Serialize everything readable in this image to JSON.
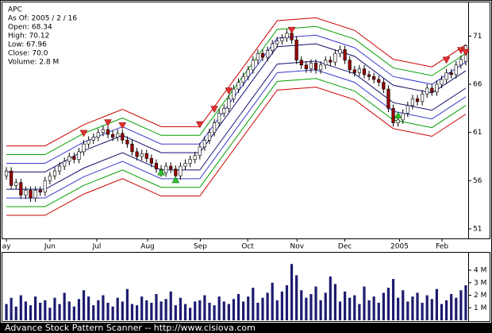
{
  "info_lines": [
    "APC",
    "As Of: 2005 / 2 / 16",
    "Open: 68.34",
    "High: 70.12",
    "Low: 67.96",
    "Close: 70.0",
    "Volume: 2.8 M"
  ],
  "footer": "Advance Stock Pattern Scanner -- http://www.cisiova.com",
  "chart_data": {
    "type": "candlestick",
    "xlim": [
      -0.5,
      95.5
    ],
    "xticks": [
      {
        "value": 0,
        "label": "ay"
      },
      {
        "value": 9,
        "label": "Jun"
      },
      {
        "value": 18.7,
        "label": "Jul"
      },
      {
        "value": 29.2,
        "label": "Aug"
      },
      {
        "value": 40.1,
        "label": "Sep"
      },
      {
        "value": 49.9,
        "label": "Oct"
      },
      {
        "value": 60.1,
        "label": "Nov"
      },
      {
        "value": 70,
        "label": "Dec"
      },
      {
        "value": 81.3,
        "label": "2005"
      },
      {
        "value": 90.1,
        "label": "Feb"
      }
    ],
    "ylim": [
      50.0,
      74.5
    ],
    "yticks": [
      51,
      56,
      61,
      66,
      71
    ],
    "volume_ylim": [
      0,
      5.4
    ],
    "volume_yticks": [
      {
        "value": 1,
        "label": "1 M"
      },
      {
        "value": 2,
        "label": "2 M"
      },
      {
        "value": 3,
        "label": "3 M"
      },
      {
        "value": 4,
        "label": "4 M"
      }
    ],
    "up_color": "#ffffff",
    "down_color": "#990000",
    "wick_color": "#000000",
    "volume_color": "#1c1c70",
    "open": [
      56.5,
      57.0,
      55.5,
      55.8,
      54.5,
      55.0,
      54.2,
      55.0,
      54.8,
      56.0,
      56.5,
      57.0,
      57.5,
      58.0,
      58.5,
      58.2,
      59.0,
      59.8,
      60.2,
      60.5,
      61.0,
      61.3,
      60.8,
      60.5,
      60.9,
      60.2,
      59.8,
      59.0,
      58.5,
      58.8,
      58.3,
      57.8,
      57.2,
      56.8,
      57.5,
      57.2,
      56.5,
      57.5,
      57.8,
      58.2,
      58.6,
      59.5,
      60.2,
      61.0,
      62.0,
      63.0,
      63.5,
      64.5,
      65.5,
      66.2,
      66.8,
      67.5,
      68.5,
      69.2,
      68.8,
      69.5,
      70.2,
      70.5,
      70.8,
      71.3,
      70.6,
      68.5,
      68.0,
      67.6,
      68.2,
      67.5,
      68.0,
      68.5,
      68.3,
      69.2,
      69.6,
      68.5,
      67.5,
      67.2,
      67.6,
      67.0,
      66.8,
      66.5,
      66.2,
      65.5,
      63.5,
      62.0,
      62.3,
      63.0,
      63.8,
      64.5,
      64.2,
      65.0,
      65.6,
      65.2,
      66.0,
      66.5,
      67.2,
      67.0,
      68.0,
      68.34
    ],
    "high": [
      57.4,
      57.4,
      56.2,
      56.2,
      55.4,
      55.4,
      55.4,
      55.4,
      56.4,
      56.9,
      57.4,
      57.9,
      58.4,
      58.9,
      58.9,
      59.4,
      60.2,
      60.6,
      60.9,
      61.4,
      61.7,
      61.7,
      61.2,
      61.3,
      61.3,
      60.6,
      60.2,
      59.4,
      59.2,
      59.2,
      58.7,
      58.2,
      57.6,
      57.9,
      57.9,
      57.6,
      57.9,
      58.2,
      58.6,
      59.0,
      59.9,
      60.6,
      61.4,
      62.4,
      63.4,
      63.9,
      64.9,
      65.9,
      66.6,
      67.2,
      67.9,
      68.9,
      69.6,
      69.6,
      69.9,
      70.6,
      70.9,
      71.2,
      71.7,
      71.7,
      71.0,
      68.9,
      68.4,
      68.6,
      68.6,
      68.4,
      68.9,
      68.9,
      69.6,
      70.0,
      70.0,
      68.9,
      67.9,
      68.0,
      68.0,
      67.4,
      67.2,
      66.9,
      66.6,
      65.9,
      63.9,
      62.7,
      63.4,
      64.2,
      64.9,
      64.9,
      65.4,
      66.0,
      66.0,
      66.4,
      66.9,
      67.6,
      67.6,
      68.4,
      69.0,
      70.12
    ],
    "low": [
      56.1,
      55.1,
      55.1,
      54.1,
      54.1,
      53.8,
      53.8,
      54.4,
      54.4,
      55.6,
      56.1,
      56.6,
      57.1,
      57.6,
      57.8,
      57.8,
      58.6,
      59.4,
      59.8,
      60.1,
      60.6,
      60.4,
      60.1,
      60.1,
      59.8,
      59.4,
      58.6,
      58.1,
      58.1,
      57.9,
      57.4,
      56.8,
      56.4,
      56.4,
      56.8,
      56.1,
      56.1,
      57.1,
      57.4,
      57.8,
      58.2,
      59.1,
      59.8,
      60.6,
      61.6,
      62.6,
      63.1,
      64.1,
      65.1,
      65.8,
      66.4,
      67.1,
      68.1,
      68.4,
      68.4,
      69.1,
      69.8,
      70.1,
      70.4,
      70.2,
      68.1,
      67.6,
      67.2,
      67.2,
      67.1,
      67.1,
      67.6,
      67.9,
      67.9,
      68.8,
      68.1,
      67.1,
      66.8,
      66.8,
      66.6,
      66.4,
      66.1,
      65.8,
      65.1,
      63.1,
      61.6,
      61.6,
      61.9,
      62.6,
      63.4,
      63.8,
      63.8,
      64.6,
      64.8,
      64.8,
      65.6,
      66.1,
      66.6,
      66.6,
      67.6,
      67.96
    ],
    "close": [
      57.0,
      55.5,
      55.8,
      54.5,
      55.0,
      54.2,
      55.0,
      54.8,
      56.0,
      56.5,
      57.0,
      57.5,
      58.0,
      58.5,
      58.2,
      59.0,
      59.8,
      60.2,
      60.5,
      61.0,
      61.3,
      60.8,
      60.5,
      60.9,
      60.2,
      59.8,
      59.0,
      58.5,
      58.8,
      58.3,
      57.8,
      57.2,
      56.8,
      57.5,
      57.2,
      56.5,
      57.5,
      57.8,
      58.2,
      58.6,
      59.5,
      60.2,
      61.0,
      62.0,
      63.0,
      63.5,
      64.5,
      65.5,
      66.2,
      66.8,
      67.5,
      68.5,
      69.2,
      68.8,
      69.5,
      70.2,
      70.5,
      70.8,
      71.3,
      70.6,
      68.5,
      68.0,
      67.6,
      68.2,
      67.5,
      68.0,
      68.5,
      68.3,
      69.2,
      69.6,
      68.5,
      67.5,
      67.2,
      67.6,
      67.0,
      66.8,
      66.5,
      66.2,
      65.5,
      63.5,
      62.0,
      62.3,
      63.0,
      63.8,
      64.5,
      64.2,
      65.0,
      65.6,
      65.2,
      66.0,
      66.5,
      67.2,
      67.0,
      68.0,
      68.6,
      70.0
    ],
    "volume": [
      1.3,
      1.8,
      1.1,
      2.0,
      1.5,
      1.2,
      1.9,
      1.4,
      1.6,
      1.0,
      1.8,
      1.3,
      2.2,
      1.5,
      1.1,
      1.7,
      2.4,
      1.9,
      1.2,
      1.6,
      2.0,
      1.4,
      1.1,
      1.8,
      1.5,
      2.5,
      1.3,
      1.2,
      1.9,
      1.6,
      1.4,
      2.1,
      1.5,
      1.7,
      2.3,
      1.2,
      1.8,
      1.3,
      1.0,
      1.5,
      1.6,
      2.0,
      1.4,
      1.2,
      1.9,
      1.5,
      1.3,
      1.7,
      2.1,
      1.5,
      1.9,
      2.6,
      1.4,
      1.8,
      2.2,
      3.0,
      1.6,
      2.3,
      2.8,
      4.5,
      3.6,
      2.4,
      1.8,
      2.1,
      2.7,
      1.6,
      2.2,
      3.5,
      2.9,
      1.5,
      2.3,
      1.8,
      2.0,
      1.3,
      2.7,
      1.6,
      1.9,
      1.4,
      2.2,
      2.6,
      3.3,
      1.8,
      2.4,
      1.5,
      1.9,
      2.2,
      1.4,
      2.0,
      1.7,
      2.5,
      1.3,
      1.6,
      2.1,
      1.8,
      2.4,
      2.8
    ],
    "band_x": [
      0,
      8,
      16,
      24,
      32,
      40,
      48,
      56,
      64,
      72,
      80,
      88,
      95
    ],
    "bands": [
      {
        "color": "#cc0000",
        "values": [
          59.6,
          59.6,
          61.8,
          63.4,
          61.6,
          61.6,
          67.1,
          72.6,
          72.9,
          71.6,
          68.6,
          67.8,
          70.1
        ]
      },
      {
        "color": "#00a000",
        "values": [
          58.7,
          58.7,
          60.9,
          62.5,
          60.7,
          60.7,
          66.2,
          71.7,
          72.0,
          70.7,
          67.7,
          66.9,
          69.2
        ]
      },
      {
        "color": "#3a3acc",
        "values": [
          57.8,
          57.8,
          60.0,
          61.6,
          59.8,
          59.8,
          65.3,
          70.8,
          71.1,
          69.8,
          66.8,
          66.0,
          68.3
        ]
      },
      {
        "color": "#101070",
        "values": [
          56.9,
          56.9,
          59.1,
          60.7,
          58.9,
          58.9,
          64.4,
          69.9,
          70.2,
          68.9,
          65.9,
          65.1,
          67.4
        ]
      },
      {
        "color": "#101070",
        "values": [
          55.1,
          55.1,
          57.3,
          58.9,
          57.1,
          57.1,
          62.6,
          68.1,
          68.4,
          67.1,
          64.1,
          63.3,
          65.6
        ]
      },
      {
        "color": "#3a3acc",
        "values": [
          54.2,
          54.2,
          56.4,
          58.0,
          56.2,
          56.2,
          61.7,
          67.2,
          67.5,
          66.2,
          63.2,
          62.4,
          64.7
        ]
      },
      {
        "color": "#00a000",
        "values": [
          53.3,
          53.3,
          55.5,
          57.1,
          55.3,
          55.3,
          60.8,
          66.3,
          66.6,
          65.3,
          62.3,
          61.5,
          63.8
        ]
      },
      {
        "color": "#cc0000",
        "values": [
          52.4,
          52.4,
          54.6,
          56.2,
          54.4,
          54.4,
          59.9,
          65.4,
          65.7,
          64.4,
          61.4,
          60.6,
          62.9
        ]
      }
    ],
    "sell_color": "#e03030",
    "buy_color": "#30c030",
    "sell_signals": [
      {
        "x": 16,
        "y": 60.9
      },
      {
        "x": 21,
        "y": 62.0
      },
      {
        "x": 24,
        "y": 61.7
      },
      {
        "x": 40,
        "y": 61.8
      },
      {
        "x": 43,
        "y": 63.4
      },
      {
        "x": 46,
        "y": 65.3
      },
      {
        "x": 59,
        "y": 71.6
      },
      {
        "x": 91,
        "y": 68.5
      },
      {
        "x": 94,
        "y": 69.5
      },
      {
        "x": 95,
        "y": 69.3
      }
    ],
    "buy_signals": [
      {
        "x": 32,
        "y": 56.9
      },
      {
        "x": 35,
        "y": 56.1
      },
      {
        "x": 81,
        "y": 62.8
      }
    ]
  }
}
